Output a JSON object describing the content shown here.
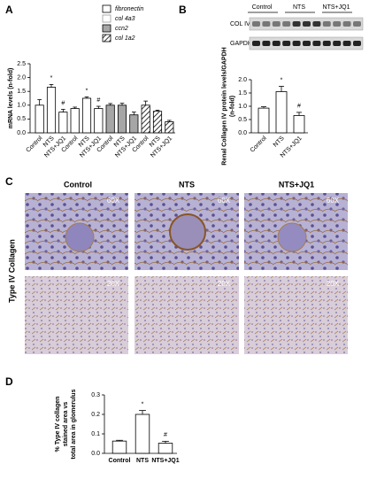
{
  "chart_data": [
    {
      "type": "bar",
      "panel_label": "A",
      "y_label": [
        "mRNA levels (n-fold)"
      ],
      "categories": [
        "Control",
        "NTS",
        "NTS+JQ1"
      ],
      "series": [
        {
          "name": "fibronectin",
          "color": "#ffffff",
          "values": [
            1.0,
            1.65,
            0.75
          ],
          "errors": [
            0.2,
            0.1,
            0.1
          ]
        },
        {
          "name": "col 4a3",
          "color": "#ffffff",
          "values": [
            0.88,
            1.25,
            0.88
          ],
          "errors": [
            0.05,
            0.05,
            0.08
          ]
        },
        {
          "name": "ccn2",
          "color": "#a6a6a6",
          "values": [
            1.0,
            1.0,
            0.65
          ],
          "errors": [
            0.06,
            0.07,
            0.1
          ]
        },
        {
          "name": "col 1a2",
          "color": "#ffffff",
          "pattern": "hatch",
          "values": [
            1.0,
            0.78,
            0.4
          ],
          "errors": [
            0.15,
            0.04,
            0.05
          ]
        }
      ],
      "annotations": [
        {
          "text": "*",
          "series": 0,
          "index": 1
        },
        {
          "text": "#",
          "series": 0,
          "index": 2
        },
        {
          "text": "*",
          "series": 1,
          "index": 1
        },
        {
          "text": "#",
          "series": 1,
          "index": 2
        }
      ],
      "ylim": [
        0,
        2.5
      ],
      "yticks": [
        {
          "value": 0,
          "label": "0.0"
        },
        0.5,
        {
          "value": 1,
          "label": "1.0"
        },
        1.5,
        {
          "value": 2,
          "label": "2.0"
        },
        2.5
      ]
    },
    {
      "type": "bar",
      "panel_label": "B",
      "y_label": [
        "Renal Collagen IV protein levels/GAPDH",
        "(n-fold)"
      ],
      "blot_labels": [
        "Control",
        "NTS",
        "NTS+JQ1"
      ],
      "blot_rows": [
        "COL IV",
        "GAPDH"
      ],
      "categories": [
        "Control",
        "NTS",
        "NTS+JQ1"
      ],
      "color": "#ffffff",
      "values": [
        0.93,
        1.55,
        0.65
      ],
      "errors": [
        0.05,
        0.2,
        0.12
      ],
      "annotations": [
        {
          "text": "*",
          "index": 1
        },
        {
          "text": "#",
          "index": 2
        }
      ],
      "ylim": [
        0,
        2
      ],
      "yticks": [
        {
          "value": 0,
          "label": "0.0"
        },
        0.5,
        {
          "value": 1,
          "label": "1.0"
        },
        1.5,
        {
          "value": 2,
          "label": "2.0"
        }
      ]
    },
    {
      "type": "bar",
      "panel_label": "D",
      "y_label": [
        "% Type IV collagen",
        "stained area vs",
        "total area in glomerulus"
      ],
      "categories": [
        "Control",
        "NTS",
        "NTS+JQ1"
      ],
      "color": "#ffffff",
      "values": [
        0.063,
        0.2,
        0.052
      ],
      "errors": [
        0.004,
        0.02,
        0.01
      ],
      "annotations": [
        {
          "text": "*",
          "index": 1
        },
        {
          "text": "#",
          "index": 2
        }
      ],
      "ylim": [
        0,
        0.3
      ],
      "yticks": [
        {
          "value": 0,
          "label": "0.0"
        },
        0.1,
        0.2,
        0.3
      ]
    }
  ],
  "panel_c": {
    "panel_label": "C",
    "columns": [
      "Control",
      "NTS",
      "NTS+JQ1"
    ],
    "row_label": "Type IV Collagen",
    "magnifications": [
      "60X",
      "20X"
    ]
  }
}
